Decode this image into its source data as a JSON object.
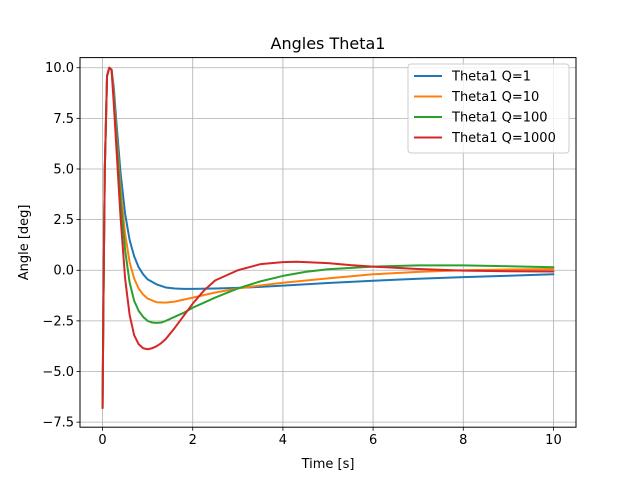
{
  "chart_data": {
    "type": "line",
    "title": "Angles Theta1",
    "xlabel": "Time [s]",
    "ylabel": "Angle [deg]",
    "xlim": [
      -0.5,
      10.5
    ],
    "ylim": [
      -7.75,
      10.5
    ],
    "xticks": [
      0,
      2,
      4,
      6,
      8,
      10
    ],
    "yticks": [
      -7.5,
      -5.0,
      -2.5,
      0.0,
      2.5,
      5.0,
      7.5,
      10.0
    ],
    "xtick_labels": [
      "0",
      "2",
      "4",
      "6",
      "8",
      "10"
    ],
    "ytick_labels": [
      "−7.5",
      "−5.0",
      "−2.5",
      "0.0",
      "2.5",
      "5.0",
      "7.5",
      "10.0"
    ],
    "grid": true,
    "legend_position": "top-right",
    "series": [
      {
        "name": "Theta1 Q=1",
        "color": "#1f77b4",
        "x": [
          0,
          0.02,
          0.05,
          0.1,
          0.15,
          0.2,
          0.25,
          0.3,
          0.4,
          0.5,
          0.6,
          0.7,
          0.8,
          0.9,
          1.0,
          1.2,
          1.4,
          1.6,
          1.8,
          2.0,
          2.5,
          3.0,
          3.5,
          4.0,
          5.0,
          6.0,
          7.0,
          8.0,
          9.0,
          10.0
        ],
        "y": [
          -6.8,
          -1.5,
          5.0,
          9.6,
          10.0,
          9.9,
          9.0,
          7.5,
          4.8,
          2.8,
          1.5,
          0.7,
          0.15,
          -0.2,
          -0.45,
          -0.7,
          -0.85,
          -0.9,
          -0.92,
          -0.92,
          -0.9,
          -0.87,
          -0.82,
          -0.76,
          -0.63,
          -0.52,
          -0.42,
          -0.34,
          -0.27,
          -0.2
        ]
      },
      {
        "name": "Theta1 Q=10",
        "color": "#ff7f0e",
        "x": [
          0,
          0.02,
          0.05,
          0.1,
          0.15,
          0.2,
          0.25,
          0.3,
          0.4,
          0.5,
          0.6,
          0.7,
          0.8,
          0.9,
          1.0,
          1.2,
          1.4,
          1.6,
          1.8,
          2.0,
          2.5,
          3.0,
          3.5,
          4.0,
          5.0,
          6.0,
          7.0,
          8.0,
          9.0,
          10.0
        ],
        "y": [
          -6.8,
          -1.5,
          5.0,
          9.6,
          10.0,
          9.9,
          8.7,
          7.0,
          4.0,
          1.8,
          0.4,
          -0.4,
          -0.9,
          -1.2,
          -1.4,
          -1.58,
          -1.6,
          -1.55,
          -1.45,
          -1.35,
          -1.1,
          -0.9,
          -0.75,
          -0.62,
          -0.4,
          -0.2,
          -0.08,
          0.0,
          0.04,
          0.06
        ]
      },
      {
        "name": "Theta1 Q=100",
        "color": "#2ca02c",
        "x": [
          0,
          0.02,
          0.05,
          0.1,
          0.15,
          0.2,
          0.25,
          0.3,
          0.4,
          0.5,
          0.6,
          0.7,
          0.8,
          0.9,
          1.0,
          1.1,
          1.2,
          1.3,
          1.4,
          1.6,
          1.8,
          2.0,
          2.5,
          3.0,
          3.5,
          4.0,
          4.5,
          5.0,
          6.0,
          7.0,
          8.0,
          9.0,
          10.0
        ],
        "y": [
          -6.8,
          -1.5,
          5.0,
          9.6,
          10.0,
          9.9,
          8.5,
          6.8,
          3.5,
          1.0,
          -0.6,
          -1.5,
          -2.0,
          -2.3,
          -2.5,
          -2.58,
          -2.6,
          -2.58,
          -2.5,
          -2.3,
          -2.1,
          -1.85,
          -1.35,
          -0.9,
          -0.55,
          -0.28,
          -0.08,
          0.05,
          0.18,
          0.24,
          0.24,
          0.2,
          0.15
        ]
      },
      {
        "name": "Theta1 Q=1000",
        "color": "#d62728",
        "x": [
          0,
          0.02,
          0.05,
          0.1,
          0.15,
          0.2,
          0.25,
          0.3,
          0.4,
          0.5,
          0.6,
          0.7,
          0.8,
          0.9,
          1.0,
          1.1,
          1.2,
          1.3,
          1.4,
          1.6,
          1.8,
          2.0,
          2.25,
          2.5,
          3.0,
          3.5,
          4.0,
          4.3,
          4.5,
          5.0,
          5.5,
          6.0,
          7.0,
          8.0,
          9.0,
          10.0
        ],
        "y": [
          -6.8,
          -1.5,
          5.0,
          9.6,
          10.0,
          9.9,
          8.2,
          6.3,
          2.6,
          -0.4,
          -2.2,
          -3.2,
          -3.65,
          -3.85,
          -3.9,
          -3.85,
          -3.75,
          -3.6,
          -3.4,
          -2.85,
          -2.25,
          -1.65,
          -1.0,
          -0.5,
          0.0,
          0.3,
          0.4,
          0.42,
          0.4,
          0.35,
          0.25,
          0.18,
          0.06,
          -0.02,
          -0.05,
          -0.06
        ]
      }
    ]
  }
}
